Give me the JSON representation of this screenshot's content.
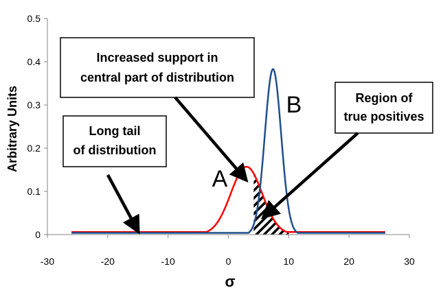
{
  "chart_data": {
    "type": "line",
    "xlabel": "σ",
    "ylabel": "Arbitrary Units",
    "xlim": [
      -30,
      30
    ],
    "ylim": [
      0,
      0.5
    ],
    "xticks": [
      "-30",
      "-20",
      "-10",
      "0",
      "10",
      "20",
      "30"
    ],
    "yticks": [
      "0",
      "0.1",
      "0.2",
      "0.3",
      "0.4",
      "0.5"
    ],
    "grid": false,
    "x_range": [
      -26,
      26
    ],
    "series": [
      {
        "name": "A",
        "color": "#ff0000",
        "kind": "gaussian",
        "mean": 3,
        "sd": 2.6,
        "peak": 0.157,
        "baseline": 0.006
      },
      {
        "name": "B",
        "color": "#1f4e8c",
        "kind": "gaussian",
        "mean": 7.4,
        "sd": 1.35,
        "peak": 0.383,
        "baseline": 0.004
      }
    ],
    "shaded_region": {
      "x_from": 4.2,
      "x_to": 10,
      "under_series": "A",
      "pattern": "diagonal-hatch"
    },
    "annotations": [
      {
        "lines": [
          "Increased support in",
          "central part of distribution"
        ]
      },
      {
        "lines": [
          "Region of",
          "true positives"
        ]
      },
      {
        "lines": [
          "Long tail",
          "of distribution"
        ]
      }
    ]
  }
}
